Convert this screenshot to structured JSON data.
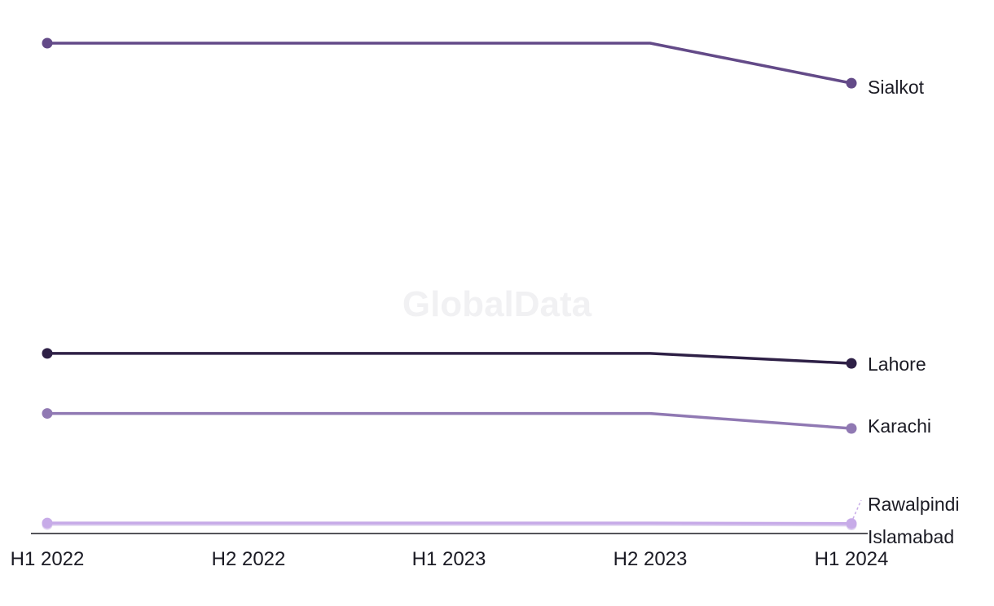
{
  "watermark": "GlobalData",
  "chart_data": {
    "type": "line",
    "title": "",
    "xlabel": "",
    "ylabel": "",
    "x": [
      "H1 2022",
      "H2 2022",
      "H1 2023",
      "H2 2023",
      "H1 2024"
    ],
    "ylim": [
      0,
      1
    ],
    "grid": false,
    "legend": "direct labels at line ends",
    "marker_points": "first and last",
    "series": [
      {
        "name": "Sialkot",
        "color": "#634a88",
        "values": [
          0.98,
          0.98,
          0.98,
          0.98,
          0.9
        ]
      },
      {
        "name": "Lahore",
        "color": "#2e2046",
        "values": [
          0.36,
          0.36,
          0.36,
          0.36,
          0.34
        ]
      },
      {
        "name": "Karachi",
        "color": "#9079b3",
        "values": [
          0.24,
          0.24,
          0.24,
          0.24,
          0.21
        ]
      },
      {
        "name": "Rawalpindi",
        "color": "#c7abe8",
        "values": [
          0.021,
          0.021,
          0.021,
          0.021,
          0.02
        ]
      },
      {
        "name": "Islamabad",
        "color": "#ddd0ef",
        "values": [
          0.018,
          0.018,
          0.018,
          0.018,
          0.017
        ]
      }
    ]
  }
}
